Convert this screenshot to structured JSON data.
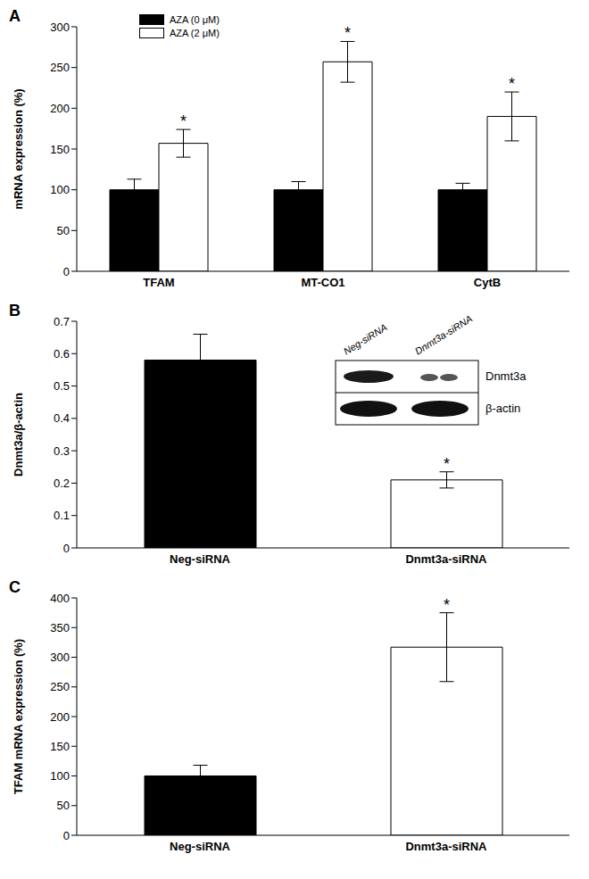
{
  "chart_data": [
    {
      "type": "bar",
      "title": "A",
      "categories": [
        "TFAM",
        "MT-CO1",
        "CytB"
      ],
      "y_label": "mRNA expression (%)",
      "ylim": [
        0,
        300
      ],
      "yticks": [
        0,
        50,
        100,
        150,
        200,
        250,
        300
      ],
      "legend": "top-left",
      "series": [
        {
          "name": "AZA (0 μM)",
          "color": "#000000",
          "values": [
            100,
            100,
            100
          ],
          "errors": [
            13,
            10,
            8
          ]
        },
        {
          "name": "AZA (2 μM)",
          "color": "#ffffff",
          "values": [
            157,
            257,
            190
          ],
          "errors": [
            17,
            25,
            30
          ],
          "significance": [
            "*",
            "*",
            "*"
          ]
        }
      ]
    },
    {
      "type": "bar",
      "title": "B",
      "categories": [
        "Neg-siRNA",
        "Dnmt3a-siRNA"
      ],
      "y_label": "Dnmt3a/β-actin",
      "ylim": [
        0,
        0.7
      ],
      "yticks": [
        0,
        0.1,
        0.2,
        0.3,
        0.4,
        0.5,
        0.6,
        0.7
      ],
      "values": [
        0.58,
        0.21
      ],
      "errors": [
        0.08,
        0.025
      ],
      "colors": [
        "#000000",
        "#ffffff"
      ],
      "significance": [
        null,
        "*"
      ],
      "inset": {
        "lanes": [
          "Neg-siRNA",
          "Dnmt3a-siRNA"
        ],
        "rows": [
          "Dnmt3a",
          "β-actin"
        ]
      }
    },
    {
      "type": "bar",
      "title": "C",
      "categories": [
        "Neg-siRNA",
        "Dnmt3a-siRNA"
      ],
      "y_label": "TFAM mRNA expression (%)",
      "ylim": [
        0,
        400
      ],
      "yticks": [
        0,
        50,
        100,
        150,
        200,
        250,
        300,
        350,
        400
      ],
      "values": [
        100,
        317
      ],
      "errors": [
        18,
        58
      ],
      "colors": [
        "#000000",
        "#ffffff"
      ],
      "significance": [
        null,
        "*"
      ]
    }
  ]
}
